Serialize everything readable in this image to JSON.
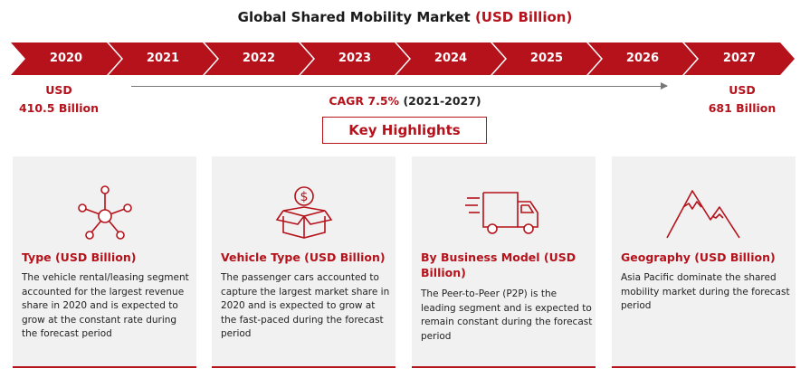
{
  "title": {
    "main": "Global Shared Mobility Market",
    "accent": "(USD Billion)"
  },
  "timeline": {
    "years": [
      "2020",
      "2021",
      "2022",
      "2023",
      "2024",
      "2025",
      "2026",
      "2027"
    ]
  },
  "start_value": {
    "line1": "USD",
    "line2": "410.5 Billion"
  },
  "end_value": {
    "line1": "USD",
    "line2": "681 Billion"
  },
  "cagr": {
    "label": "CAGR 7.5%",
    "period": "(2021-2027)"
  },
  "key_highlights": "Key Highlights",
  "colors": {
    "accent": "#b5121b",
    "card_bg": "#f1f1f1"
  },
  "cards": [
    {
      "icon": "network-hub-icon",
      "heading": "Type (USD Billion)",
      "text": "The vehicle rental/leasing segment accounted for the largest revenue share in 2020 and is expected to grow at the constant rate during the forecast period"
    },
    {
      "icon": "money-box-icon",
      "heading": "Vehicle Type (USD Billion)",
      "text": "The passenger cars accounted to capture the largest market share in 2020 and is expected to grow at the fast-paced during the forecast period"
    },
    {
      "icon": "delivery-truck-icon",
      "heading": "By Business Model (USD Billion)",
      "text": "The Peer-to-Peer (P2P) is the leading segment and is expected to remain constant during the forecast period"
    },
    {
      "icon": "mountains-icon",
      "heading": "Geography (USD Billion)",
      "text": "Asia Pacific dominate the shared mobility market during the forecast period"
    }
  ]
}
